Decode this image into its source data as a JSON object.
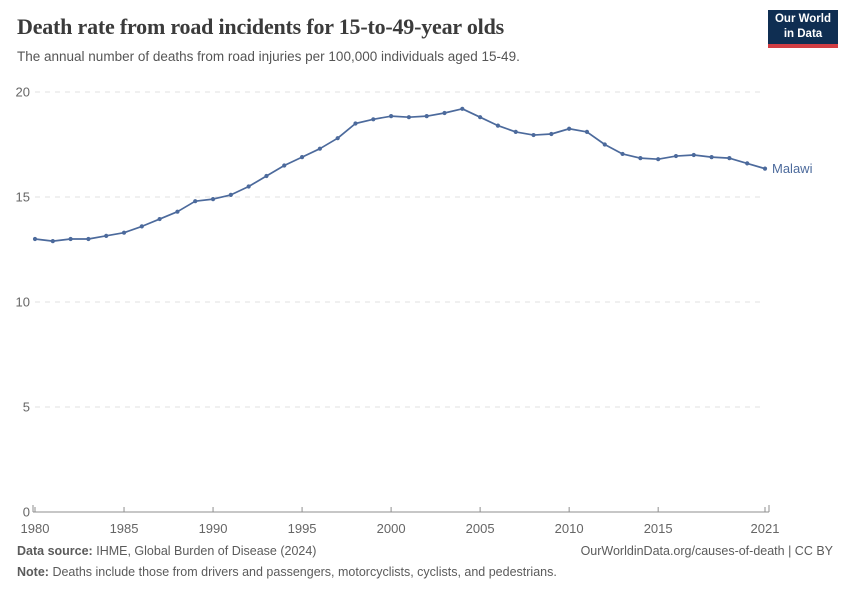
{
  "header": {
    "title": "Death rate from road incidents for 15-to-49-year olds",
    "subtitle": "The annual number of deaths from road injuries per 100,000 individuals aged 15-49.",
    "logo": {
      "line1": "Our World",
      "line2": "in Data"
    }
  },
  "chart_data": {
    "type": "line",
    "title": "Death rate from road incidents for 15-to-49-year olds",
    "xlabel": "",
    "ylabel": "",
    "xlim": [
      1980,
      2021
    ],
    "ylim": [
      0,
      20
    ],
    "yticks": [
      0,
      5,
      10,
      15,
      20
    ],
    "xticks": [
      1980,
      1985,
      1990,
      1995,
      2000,
      2005,
      2010,
      2015,
      2021
    ],
    "grid": "horizontal-dashed",
    "legend_position": "line-end-label",
    "x": [
      1980,
      1981,
      1982,
      1983,
      1984,
      1985,
      1986,
      1987,
      1988,
      1989,
      1990,
      1991,
      1992,
      1993,
      1994,
      1995,
      1996,
      1997,
      1998,
      1999,
      2000,
      2001,
      2002,
      2003,
      2004,
      2005,
      2006,
      2007,
      2008,
      2009,
      2010,
      2011,
      2012,
      2013,
      2014,
      2015,
      2016,
      2017,
      2018,
      2019,
      2020,
      2021
    ],
    "series": [
      {
        "name": "Malawi",
        "values": [
          13.0,
          12.9,
          13.0,
          13.0,
          13.15,
          13.3,
          13.6,
          13.95,
          14.3,
          14.8,
          14.9,
          15.1,
          15.5,
          16.0,
          16.5,
          16.9,
          17.3,
          17.8,
          18.5,
          18.7,
          18.85,
          18.8,
          18.85,
          19.0,
          19.2,
          18.8,
          18.4,
          18.1,
          17.95,
          18.0,
          18.25,
          18.1,
          17.5,
          17.05,
          16.85,
          16.8,
          16.95,
          17.0,
          16.9,
          16.85,
          16.6,
          16.35
        ]
      }
    ]
  },
  "footer": {
    "datasource_label": "Data source:",
    "datasource_value": "IHME, Global Burden of Disease (2024)",
    "link": "OurWorldinData.org/causes-of-death | CC BY",
    "note_label": "Note:",
    "note_value": "Deaths include those from drivers and passengers, motorcyclists, cyclists, and pedestrians."
  },
  "colors": {
    "line": "#4c6a9c",
    "grid": "#e0e0e0",
    "axis": "#8f8f8f",
    "tick_label": "#666666",
    "logo_bg": "#0f2e52",
    "logo_accent": "#d13d43"
  }
}
